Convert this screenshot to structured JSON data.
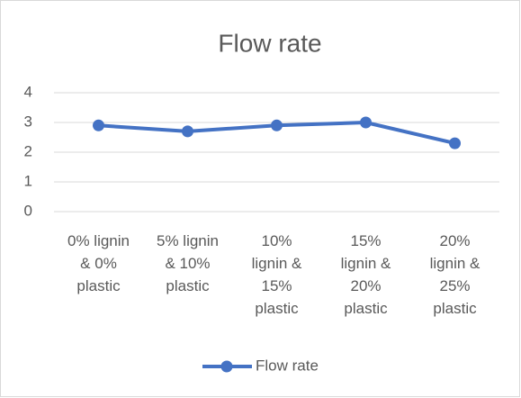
{
  "chart_data": {
    "type": "line",
    "title": "Flow rate",
    "categories": [
      "0% lignin & 0% plastic",
      "5% lignin & 10% plastic",
      "10% lignin & 15% plastic",
      "15% lignin & 20% plastic",
      "20% lignin & 25% plastic"
    ],
    "series": [
      {
        "name": "Flow rate",
        "color": "#4472c4",
        "values": [
          2.9,
          2.7,
          2.9,
          3.0,
          2.3
        ]
      }
    ],
    "ylim": [
      0,
      4
    ],
    "yticks": [
      0,
      1,
      2,
      3,
      4
    ],
    "grid": true,
    "legend": "bottom"
  }
}
